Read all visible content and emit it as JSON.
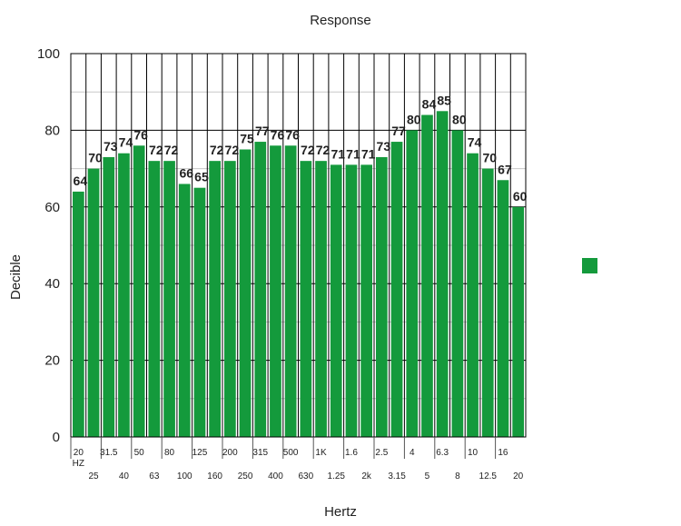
{
  "chart_data": {
    "type": "bar",
    "title": "Response",
    "xlabel": "Hertz",
    "ylabel": "Decible",
    "ylim": [
      0,
      100
    ],
    "yticks": [
      0,
      20,
      40,
      60,
      80,
      100
    ],
    "grid": true,
    "legend": "right",
    "color": "#149a3c",
    "categories": [
      "20 HZ",
      "25",
      "31.5",
      "40",
      "50",
      "63",
      "80",
      "100",
      "125",
      "160",
      "200",
      "250",
      "315",
      "400",
      "500",
      "630",
      "1K",
      "1.25",
      "1.6",
      "2k",
      "2.5",
      "3.15",
      "4",
      "5",
      "6.3",
      "8",
      "10",
      "12.5",
      "16",
      "20"
    ],
    "category_labels_upper": [
      "20",
      "31.5",
      "50",
      "80",
      "125",
      "200",
      "315",
      "500",
      "1K",
      "1.6",
      "2.5",
      "4",
      "6.3",
      "10",
      "16"
    ],
    "category_labels_upper_suffix": "HZ",
    "category_labels_lower": [
      "25",
      "40",
      "63",
      "100",
      "160",
      "250",
      "400",
      "630",
      "1.25",
      "2k",
      "3.15",
      "5",
      "8",
      "12.5",
      "20"
    ],
    "values": [
      64,
      70,
      73,
      74,
      76,
      72,
      72,
      66,
      65,
      72,
      72,
      75,
      77,
      76,
      76,
      72,
      72,
      71,
      71,
      71,
      73,
      77,
      80,
      84,
      85,
      80,
      74,
      70,
      67,
      60
    ],
    "series": [
      {
        "values": [
          64,
          70,
          73,
          74,
          76,
          72,
          72,
          66,
          65,
          72,
          72,
          75,
          77,
          76,
          76,
          72,
          72,
          71,
          71,
          71,
          73,
          77,
          80,
          84,
          85,
          80,
          74,
          70,
          67,
          60
        ]
      }
    ]
  }
}
